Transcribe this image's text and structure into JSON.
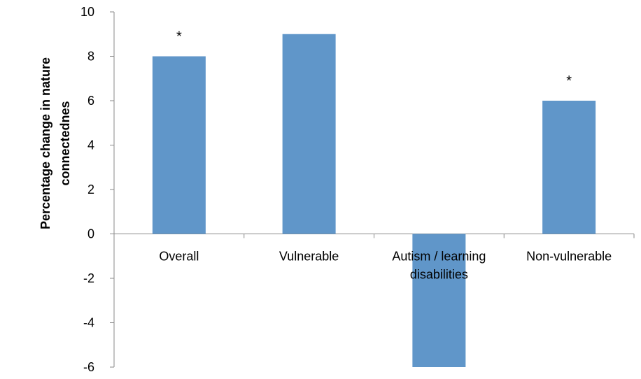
{
  "chart_data": {
    "type": "bar",
    "title": "",
    "xlabel": "",
    "ylabel_lines": [
      "Percentage change in nature",
      "connectednes"
    ],
    "categories": [
      [
        "Overall"
      ],
      [
        "Vulnerable"
      ],
      [
        "Autism / learning",
        "disabilities"
      ],
      [
        "Non-vulnerable"
      ]
    ],
    "values": [
      8,
      9,
      -6,
      6
    ],
    "annotations": [
      "*",
      "",
      "",
      "*"
    ],
    "ylim": [
      -6,
      10
    ],
    "yticks": [
      -6,
      -4,
      -2,
      0,
      2,
      4,
      6,
      8,
      10
    ],
    "ytick_labels": [
      "-6",
      "-4",
      "-2",
      "0",
      "2",
      "4",
      "6",
      "8",
      "10"
    ],
    "grid": false,
    "legend": "none",
    "bar_color": "#6096c9",
    "axis_color": "#888888"
  }
}
